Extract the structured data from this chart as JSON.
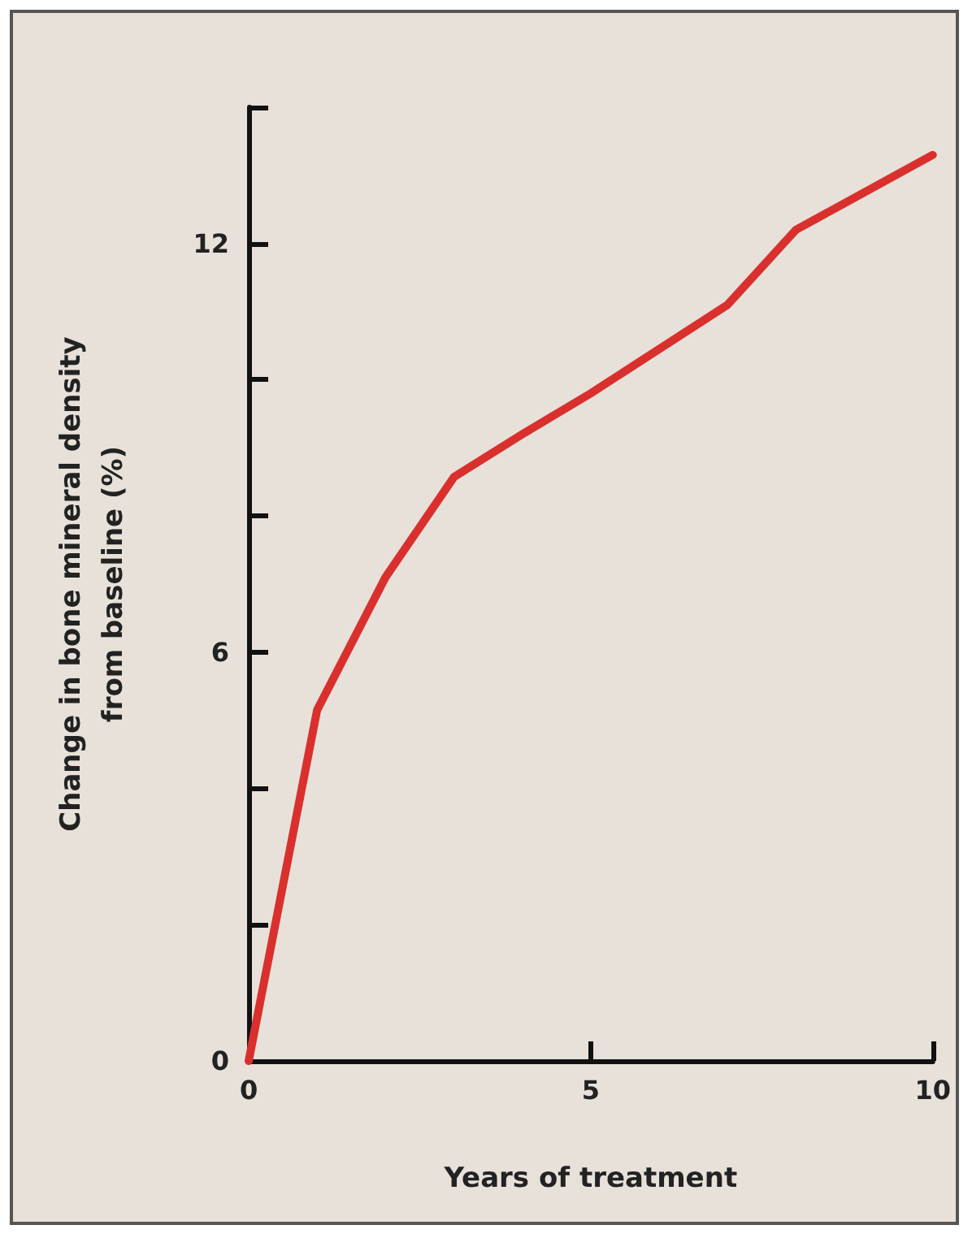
{
  "chart_data": {
    "type": "line",
    "xlabel": "Years of treatment",
    "ylabel": "Change in bone mineral density\nfrom baseline (%)",
    "x": [
      0,
      1,
      2,
      3,
      4,
      5,
      6,
      7,
      8,
      10
    ],
    "series": [
      {
        "color": "#d9302e",
        "values": [
          0,
          5.15,
          7.1,
          8.57,
          9.2,
          9.8,
          10.45,
          11.1,
          12.2,
          13.3
        ]
      }
    ],
    "xlim": [
      0,
      10
    ],
    "xticks": [
      0,
      5,
      10
    ],
    "ylim": [
      0,
      14
    ],
    "yticks": [
      0,
      {
        "value": 2,
        "label": null
      },
      {
        "value": 4,
        "label": null
      },
      6,
      {
        "value": 8,
        "label": null
      },
      {
        "value": 10,
        "label": null
      },
      12,
      {
        "value": 14,
        "label": null
      }
    ],
    "grid": false,
    "marker": "none",
    "line_style": "solid"
  }
}
